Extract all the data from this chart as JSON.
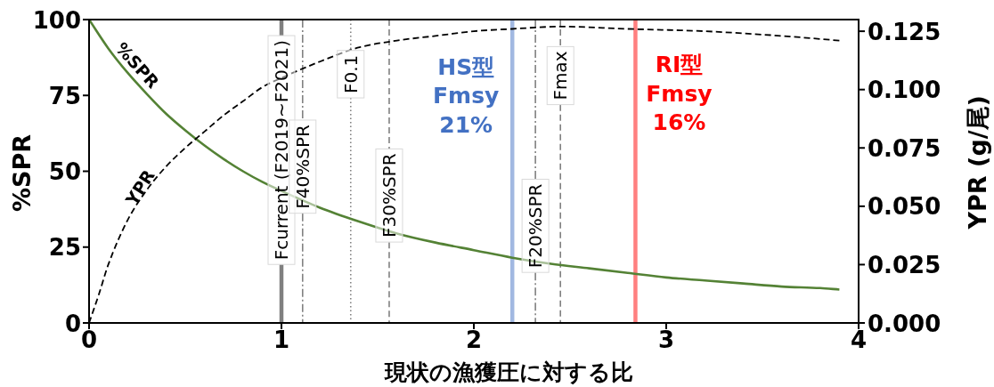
{
  "chart_data": {
    "type": "line",
    "xlabel": "現状の漁獲圧に対する比",
    "ylabel": "%SPR",
    "y2label": "YPR (g/尾)",
    "xlim": [
      0,
      4
    ],
    "xticks": [
      0,
      1,
      2,
      3,
      4
    ],
    "ylim": [
      0,
      100
    ],
    "yticks": [
      0,
      25,
      50,
      75,
      100
    ],
    "y2lim": [
      0,
      0.13
    ],
    "y2ticks": [
      {
        "value": 0,
        "label": "0.000"
      },
      0.025,
      {
        "value": 0.05,
        "label": "0.050"
      },
      0.075,
      {
        "value": 0.1,
        "label": "0.100"
      },
      0.125
    ],
    "series": [
      {
        "name": "%SPR",
        "color": "#548235",
        "line_style": "solid",
        "x": [
          0,
          0.1,
          0.2,
          0.3,
          0.4,
          0.5,
          0.6,
          0.7,
          0.8,
          0.9,
          1,
          1.2,
          1.4,
          1.6,
          1.8,
          2,
          2.2,
          2.4,
          2.6,
          2.8,
          3,
          3.2,
          3.4,
          3.6,
          3.8,
          3.9
        ],
        "values": [
          100,
          90.5,
          82.5,
          75.5,
          69,
          63.5,
          58.5,
          54,
          50,
          46.5,
          43.5,
          38,
          33.5,
          29.5,
          26.5,
          24,
          21.5,
          19.5,
          18,
          16.5,
          15,
          14,
          13,
          12,
          11.5,
          11
        ]
      },
      {
        "name": "YPR",
        "color": "#000000",
        "line_style": "dashed",
        "axis": "y2",
        "x": [
          0,
          0.05,
          0.1,
          0.2,
          0.3,
          0.4,
          0.5,
          0.6,
          0.7,
          0.8,
          0.9,
          1,
          1.2,
          1.4,
          1.6,
          1.8,
          2,
          2.2,
          2.45,
          2.8,
          3.2,
          3.6,
          3.9
        ],
        "values": [
          0,
          0.012,
          0.025,
          0.044,
          0.057,
          0.067,
          0.075,
          0.082,
          0.089,
          0.095,
          0.101,
          0.105,
          0.112,
          0.118,
          0.121,
          0.123,
          0.125,
          0.126,
          0.127,
          0.126,
          0.125,
          0.123,
          0.121
        ]
      }
    ],
    "ref_lines": [
      {
        "axis": "x",
        "value": 1,
        "label": "Fcurrent (F2019~F2021)",
        "color": "#808080",
        "line_style": "solid"
      },
      {
        "axis": "x",
        "value": 1.11,
        "label": "F40%SPR",
        "color": "#808080",
        "line_style": "dashdot"
      },
      {
        "axis": "x",
        "value": 1.36,
        "label": "F0.1",
        "color": "#808080",
        "line_style": "dotted"
      },
      {
        "axis": "x",
        "value": 1.56,
        "label": "F30%SPR",
        "color": "#808080",
        "line_style": "dashed"
      },
      {
        "axis": "x",
        "value": 2.2,
        "label": "HS型\nFmsy\n21%",
        "color": "#a1b8e1",
        "line_style": "solid"
      },
      {
        "axis": "x",
        "value": 2.32,
        "label": "F20%SPR",
        "color": "#808080",
        "line_style": "dashdot"
      },
      {
        "axis": "x",
        "value": 2.45,
        "label": "Fmax",
        "color": "#808080",
        "line_style": "dashed"
      },
      {
        "axis": "x",
        "value": 2.84,
        "label": "RI型\nFmsy\n16%",
        "color": "#ff8080",
        "line_style": "solid"
      }
    ]
  }
}
